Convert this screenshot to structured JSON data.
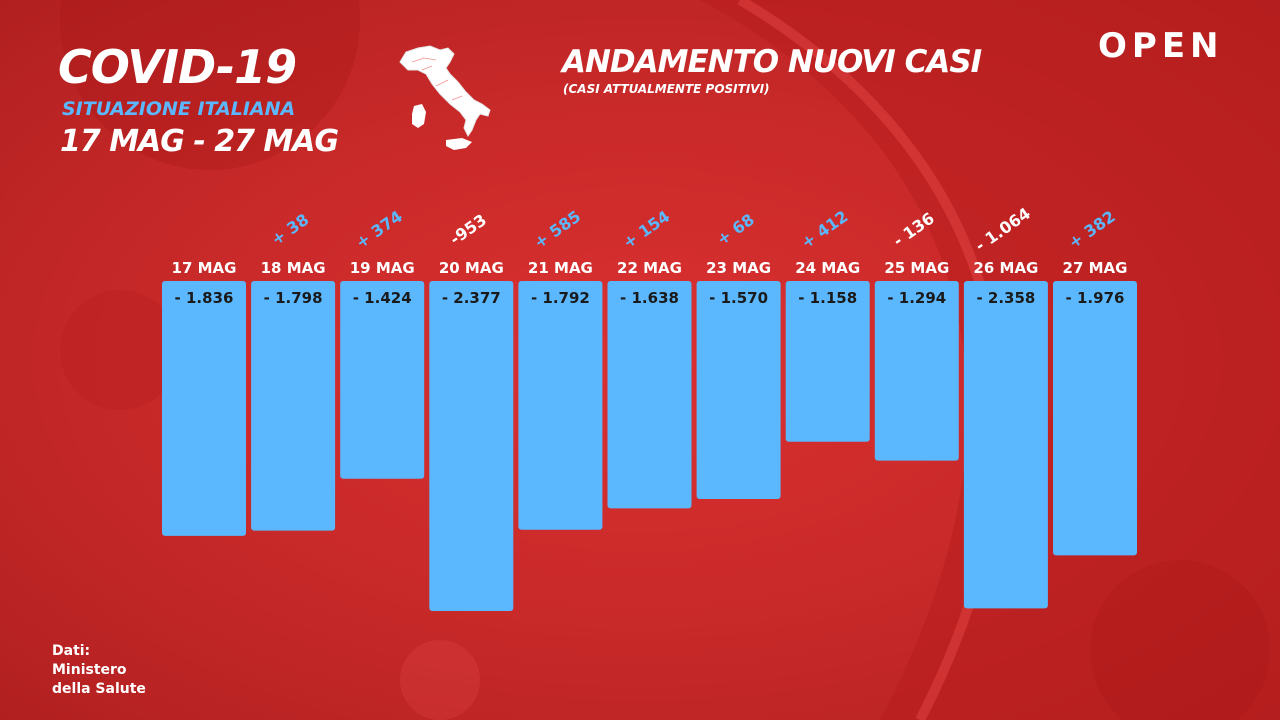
{
  "header": {
    "title": "COVID-19",
    "subtitle": "SITUAZIONE ITALIANA",
    "date_range": "17 MAG - 27 MAG"
  },
  "brand": {
    "name": "OPEN"
  },
  "source": {
    "line1": "Dati:",
    "line2": "Ministero",
    "line3": "della Salute"
  },
  "colors": {
    "background": "#d42a2a",
    "bar": "#5bb8ff",
    "positive_change": "#5bb8ff",
    "negative_change": "#ffffff",
    "bar_label": "#1a1a1a"
  },
  "icons": {
    "map": "italy-map-icon"
  },
  "chart_data": {
    "type": "bar",
    "title": "ANDAMENTO NUOVI CASI",
    "subtitle": "(CASI ATTUALMENTE POSITIVI)",
    "xlabel": "",
    "ylabel": "",
    "categories": [
      "17 MAG",
      "18 MAG",
      "19 MAG",
      "20 MAG",
      "21 MAG",
      "22 MAG",
      "23 MAG",
      "24 MAG",
      "25 MAG",
      "26 MAG",
      "27 MAG"
    ],
    "values": [
      -1836,
      -1798,
      -1424,
      -2377,
      -1792,
      -1638,
      -1570,
      -1158,
      -1294,
      -2358,
      -1976
    ],
    "value_labels": [
      "- 1.836",
      "- 1.798",
      "- 1.424",
      "- 2.377",
      "- 1.792",
      "- 1.638",
      "- 1.570",
      "- 1.158",
      "- 1.294",
      "- 2.358",
      "- 1.976"
    ],
    "day_over_day_changes": [
      null,
      38,
      374,
      -953,
      585,
      154,
      68,
      412,
      -136,
      -1064,
      382
    ],
    "change_labels": [
      "",
      "+ 38",
      "+ 374",
      "-953",
      "+ 585",
      "+ 154",
      "+ 68",
      "+ 412",
      "- 136",
      "- 1.064",
      "+ 382"
    ],
    "ylim": [
      -2377,
      0
    ],
    "grid": false,
    "legend": "none"
  }
}
